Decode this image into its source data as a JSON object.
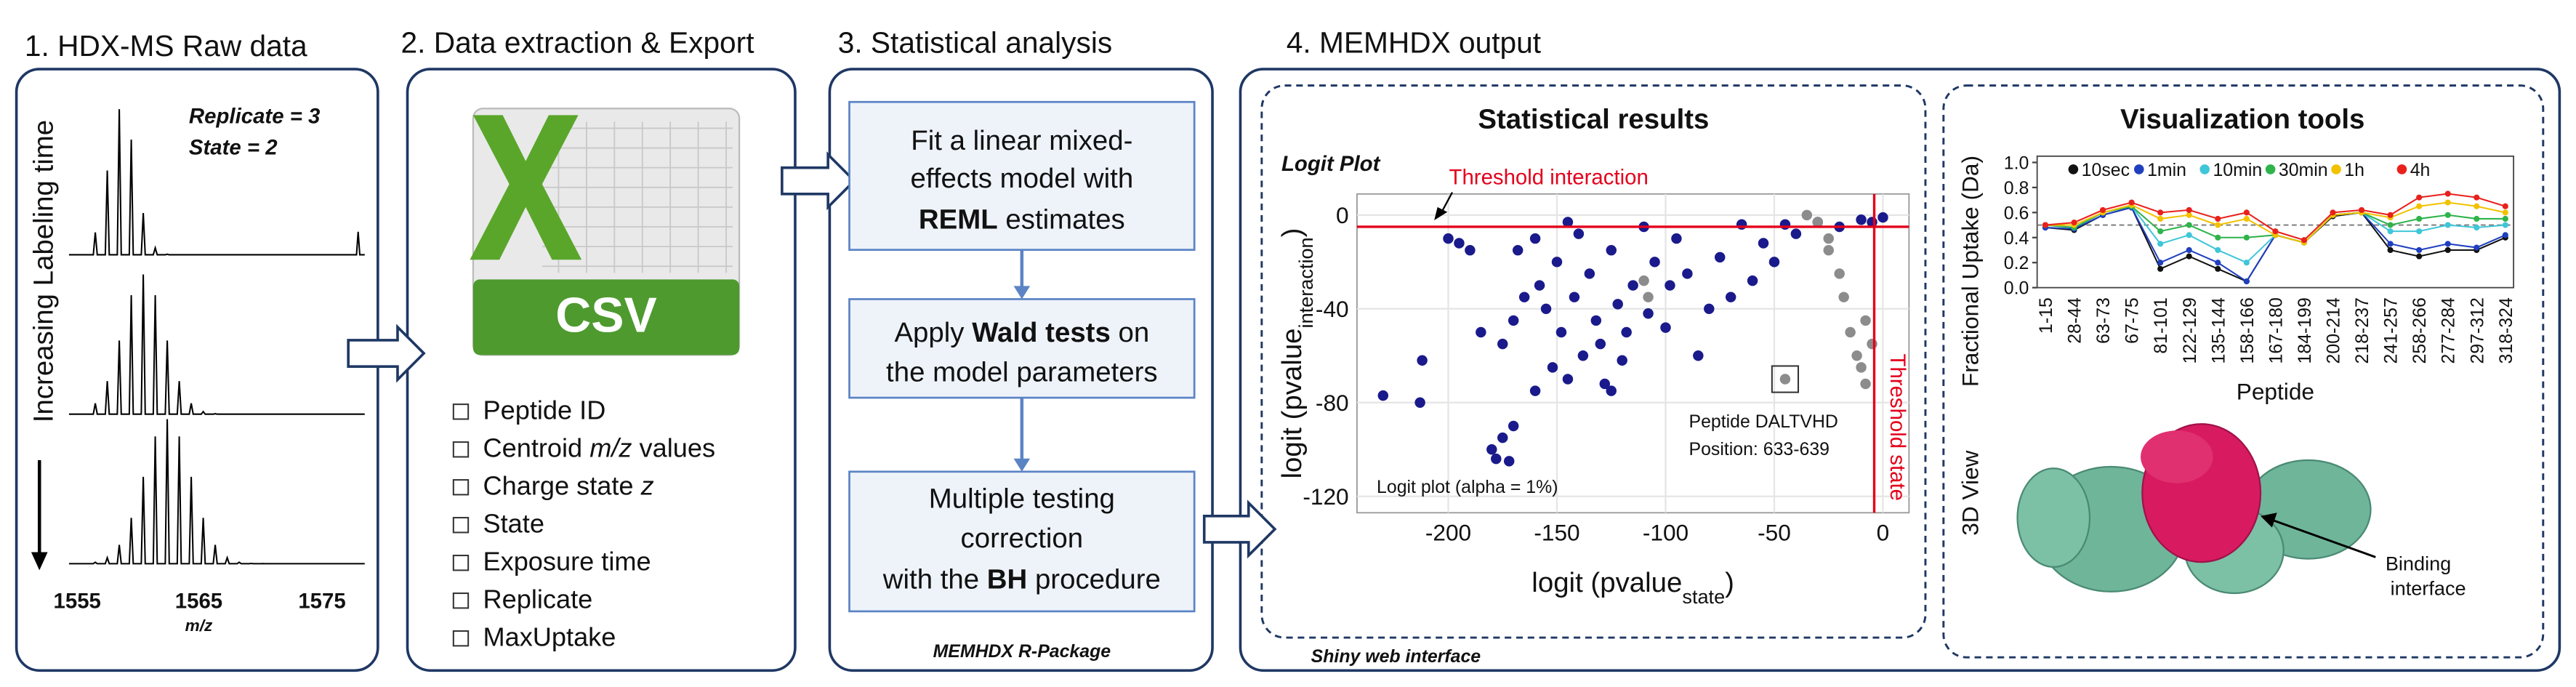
{
  "panels": {
    "raw": {
      "title": "1. HDX-MS Raw data",
      "axis_label": "Increasing Labeling time",
      "notes": [
        "Replicate = 3",
        "State = 2"
      ],
      "ticks": [
        "1555",
        "1565",
        "1575"
      ],
      "unit": "m/z"
    },
    "export": {
      "title": "2. Data extraction & Export",
      "icon_label": "CSV",
      "items": [
        [
          "Peptide ID"
        ],
        [
          "Centroid ",
          {
            "text": "m/z",
            "style": "italic"
          },
          " values"
        ],
        [
          "Charge state ",
          {
            "text": "z",
            "style": "italic"
          }
        ],
        [
          "State"
        ],
        [
          "Exposure time"
        ],
        [
          "Replicate"
        ],
        [
          "MaxUptake"
        ]
      ]
    },
    "stats": {
      "title": "3. Statistical analysis",
      "steps": [
        [
          [
            "Fit a linear mixed-"
          ],
          [
            "effects model with"
          ],
          [
            {
              "text": "REML",
              "style": "bold"
            },
            " estimates"
          ]
        ],
        [
          [
            "Apply ",
            {
              "text": "Wald tests",
              "style": "bold"
            },
            " on"
          ],
          [
            "the model parameters"
          ]
        ],
        [
          [
            "Multiple testing"
          ],
          [
            "correction"
          ],
          [
            "with the ",
            {
              "text": "BH",
              "style": "bold"
            },
            " procedure"
          ]
        ]
      ],
      "footer": "MEMHDX R-Package"
    },
    "output": {
      "title": "4. MEMHDX output",
      "footer": "Shiny web interface",
      "results_title": "Statistical results",
      "tools_title": "Visualization tools",
      "view_label": "3D View",
      "callout": [
        "Binding",
        "interface"
      ]
    }
  },
  "chart_data": [
    {
      "type": "scatter",
      "title": "Logit Plot",
      "x_label": [
        "logit (pvalue",
        "state",
        ")"
      ],
      "y_label": [
        "logit (pvalue",
        "interaction",
        ")"
      ],
      "xlim": [
        -242,
        12
      ],
      "ylim": [
        -127,
        9
      ],
      "xticks": [
        -200,
        -150,
        -100,
        -50,
        0
      ],
      "yticks": [
        0,
        -40,
        -80,
        -120
      ],
      "grid": true,
      "series": [
        {
          "color": "#1a1a8c",
          "x": [
            -230,
            -213,
            -212,
            -200,
            -195,
            -190,
            -180,
            -175,
            -178,
            -172,
            -170,
            -175,
            -170,
            -165,
            -160,
            -158,
            -155,
            -152,
            -150,
            -148,
            -145,
            -142,
            -140,
            -138,
            -135,
            -132,
            -130,
            -128,
            -125,
            -122,
            -120,
            -118,
            -115,
            -110,
            -108,
            -105,
            -100,
            -98,
            -95,
            -90,
            -85,
            -80,
            -75,
            -70,
            -65,
            -60,
            -55,
            -50,
            -45,
            -40,
            -30,
            -20,
            -10,
            -5,
            0,
            -160,
            -185,
            -168,
            -145,
            -125
          ],
          "values": [
            -77,
            -80,
            -62,
            -10,
            -12,
            -15,
            -100,
            -95,
            -104,
            -105,
            -90,
            -55,
            -45,
            -35,
            -10,
            -30,
            -40,
            -65,
            -20,
            -50,
            -70,
            -35,
            -8,
            -60,
            -25,
            -45,
            -55,
            -72,
            -15,
            -38,
            -62,
            -50,
            -30,
            -5,
            -42,
            -20,
            -48,
            -30,
            -10,
            -25,
            -60,
            -40,
            -18,
            -35,
            -4,
            -28,
            -12,
            -20,
            -4,
            -8,
            -3,
            -5,
            -2,
            -3,
            -1,
            -75,
            -50,
            -15,
            -3,
            -75
          ]
        },
        {
          "color": "#8c8c8c",
          "x": [
            -35,
            -30,
            -25,
            -20,
            -18,
            -15,
            -12,
            -10,
            -8,
            -5,
            -110,
            -108,
            -25,
            -45,
            -8
          ],
          "values": [
            0,
            -3,
            -10,
            -25,
            -35,
            -50,
            -60,
            -65,
            -72,
            -55,
            -28,
            -35,
            -15,
            -70,
            -45
          ]
        }
      ],
      "thresholds": {
        "interaction": {
          "value": -5,
          "label": "Threshold interaction",
          "color": "#e3001b"
        },
        "state": {
          "value": -4,
          "label": "Threshold state",
          "color": "#e3001b"
        }
      },
      "highlight": {
        "x": -45,
        "y": -70,
        "label": [
          "Peptide DALTVHD",
          "Position: 633-639"
        ]
      },
      "note": "Logit plot (alpha = 1%)"
    },
    {
      "type": "line",
      "x_label": "Peptide",
      "y_label": "Fractional Uptake (Da)",
      "categories": [
        "1-15",
        "28-44",
        "63-73",
        "67-75",
        "81-101",
        "122-129",
        "135-144",
        "158-166",
        "167-180",
        "184-199",
        "200-214",
        "218-237",
        "241-257",
        "258-266",
        "277-284",
        "297-312",
        "318-324"
      ],
      "ylim": [
        0,
        1.05
      ],
      "yticks": [
        {
          "value": 0,
          "label": "0.0"
        },
        {
          "value": 0.2,
          "label": "0.2"
        },
        {
          "value": 0.4,
          "label": "0.4"
        },
        {
          "value": 0.6,
          "label": "0.6"
        },
        {
          "value": 0.8,
          "label": "0.8"
        },
        {
          "value": 1,
          "label": "1.0"
        }
      ],
      "reference_line": 0.5,
      "series": [
        {
          "name": "10sec",
          "color": "#111111",
          "values": [
            0.48,
            0.46,
            0.58,
            0.64,
            0.15,
            0.25,
            0.15,
            0.05,
            0.42,
            0.36,
            0.57,
            0.6,
            0.3,
            0.25,
            0.3,
            0.3,
            0.4
          ]
        },
        {
          "name": "1min",
          "color": "#1f3fbf",
          "values": [
            0.48,
            0.47,
            0.58,
            0.64,
            0.2,
            0.3,
            0.2,
            0.05,
            0.42,
            0.36,
            0.58,
            0.6,
            0.35,
            0.3,
            0.35,
            0.32,
            0.42
          ]
        },
        {
          "name": "10min",
          "color": "#3fc6d8",
          "values": [
            0.5,
            0.48,
            0.6,
            0.65,
            0.35,
            0.42,
            0.3,
            0.2,
            0.42,
            0.36,
            0.58,
            0.6,
            0.45,
            0.45,
            0.5,
            0.48,
            0.5
          ]
        },
        {
          "name": "30min",
          "color": "#2fb34a",
          "values": [
            0.5,
            0.48,
            0.6,
            0.65,
            0.45,
            0.5,
            0.4,
            0.4,
            0.42,
            0.36,
            0.58,
            0.6,
            0.5,
            0.55,
            0.58,
            0.55,
            0.55
          ]
        },
        {
          "name": "1h",
          "color": "#f2c200",
          "values": [
            0.5,
            0.5,
            0.6,
            0.66,
            0.55,
            0.58,
            0.5,
            0.55,
            0.42,
            0.36,
            0.58,
            0.6,
            0.56,
            0.65,
            0.68,
            0.65,
            0.6
          ]
        },
        {
          "name": "4h",
          "color": "#e8211c",
          "values": [
            0.5,
            0.52,
            0.62,
            0.68,
            0.6,
            0.62,
            0.55,
            0.6,
            0.45,
            0.38,
            0.6,
            0.62,
            0.58,
            0.72,
            0.75,
            0.72,
            0.65
          ]
        }
      ]
    }
  ]
}
